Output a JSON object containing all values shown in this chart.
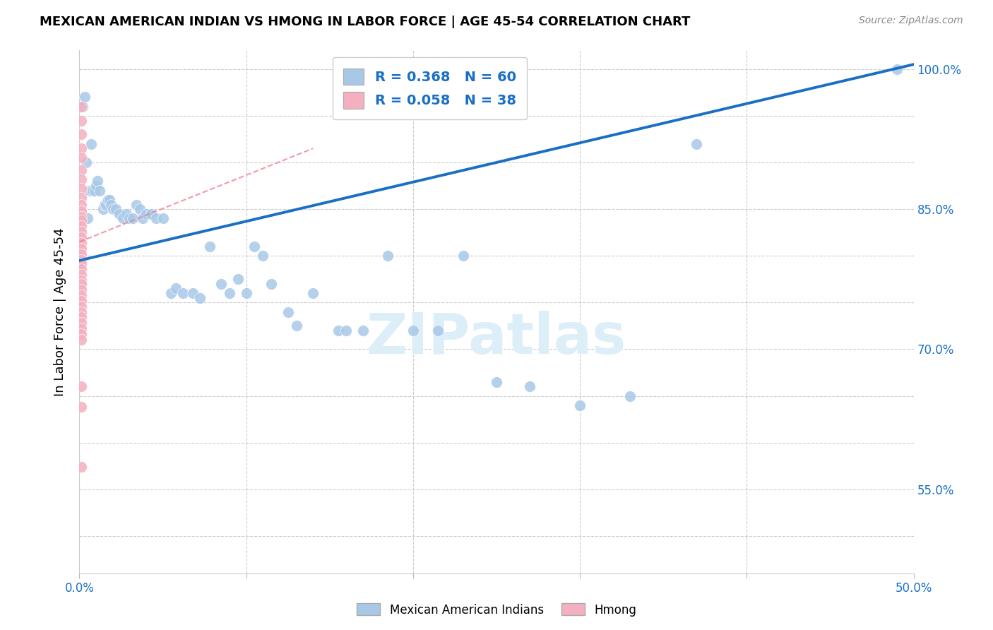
{
  "title": "MEXICAN AMERICAN INDIAN VS HMONG IN LABOR FORCE | AGE 45-54 CORRELATION CHART",
  "source": "Source: ZipAtlas.com",
  "ylabel": "In Labor Force | Age 45-54",
  "xlim": [
    0.0,
    0.5
  ],
  "ylim": [
    0.46,
    1.02
  ],
  "x_ticks": [
    0.0,
    0.1,
    0.2,
    0.3,
    0.4,
    0.5
  ],
  "x_tick_labels": [
    "0.0%",
    "",
    "",
    "",
    "",
    "50.0%"
  ],
  "y_ticks": [
    0.5,
    0.55,
    0.6,
    0.65,
    0.7,
    0.75,
    0.8,
    0.85,
    0.9,
    0.95,
    1.0
  ],
  "y_tick_labels_right": [
    "",
    "55.0%",
    "",
    "",
    "70.0%",
    "",
    "",
    "85.0%",
    "",
    "",
    "100.0%"
  ],
  "blue_color": "#a8c8e8",
  "pink_color": "#f4b0c0",
  "trendline_blue": "#1a6fc4",
  "trendline_pink_color": "#e87c8a",
  "legend_blue_R": "0.368",
  "legend_blue_N": "60",
  "legend_pink_R": "0.058",
  "legend_pink_N": "38",
  "watermark": "ZIPatlas",
  "trendline_blue_x0": 0.0,
  "trendline_blue_y0": 0.795,
  "trendline_blue_x1": 0.5,
  "trendline_blue_y1": 1.005,
  "trendline_pink_x0": 0.0,
  "trendline_pink_y0": 0.815,
  "trendline_pink_x1": 0.14,
  "trendline_pink_y1": 0.915,
  "blue_x": [
    0.002,
    0.003,
    0.004,
    0.005,
    0.006,
    0.007,
    0.008,
    0.009,
    0.01,
    0.011,
    0.012,
    0.014,
    0.015,
    0.016,
    0.017,
    0.018,
    0.019,
    0.02,
    0.022,
    0.024,
    0.026,
    0.028,
    0.03,
    0.032,
    0.034,
    0.036,
    0.038,
    0.04,
    0.043,
    0.046,
    0.05,
    0.055,
    0.058,
    0.062,
    0.068,
    0.072,
    0.078,
    0.085,
    0.09,
    0.095,
    0.1,
    0.105,
    0.11,
    0.115,
    0.125,
    0.13,
    0.14,
    0.155,
    0.16,
    0.17,
    0.185,
    0.2,
    0.215,
    0.23,
    0.25,
    0.27,
    0.3,
    0.33,
    0.37,
    0.49
  ],
  "blue_y": [
    0.96,
    0.97,
    0.9,
    0.84,
    0.87,
    0.92,
    0.87,
    0.87,
    0.875,
    0.88,
    0.87,
    0.85,
    0.855,
    0.855,
    0.86,
    0.86,
    0.855,
    0.85,
    0.85,
    0.845,
    0.84,
    0.845,
    0.84,
    0.84,
    0.855,
    0.85,
    0.84,
    0.845,
    0.845,
    0.84,
    0.84,
    0.76,
    0.765,
    0.76,
    0.76,
    0.755,
    0.81,
    0.77,
    0.76,
    0.775,
    0.76,
    0.81,
    0.8,
    0.77,
    0.74,
    0.725,
    0.76,
    0.72,
    0.72,
    0.72,
    0.8,
    0.72,
    0.72,
    0.8,
    0.665,
    0.66,
    0.64,
    0.65,
    0.92,
    1.0
  ],
  "pink_x": [
    0.001,
    0.001,
    0.001,
    0.001,
    0.001,
    0.001,
    0.001,
    0.001,
    0.001,
    0.001,
    0.001,
    0.001,
    0.001,
    0.001,
    0.001,
    0.001,
    0.001,
    0.001,
    0.001,
    0.001,
    0.001,
    0.001,
    0.001,
    0.001,
    0.001,
    0.001,
    0.001,
    0.001,
    0.001,
    0.001,
    0.001,
    0.001,
    0.001,
    0.001,
    0.001,
    0.001,
    0.001,
    0.001
  ],
  "pink_y": [
    0.96,
    0.945,
    0.93,
    0.915,
    0.905,
    0.892,
    0.882,
    0.872,
    0.862,
    0.855,
    0.848,
    0.842,
    0.838,
    0.832,
    0.826,
    0.82,
    0.814,
    0.808,
    0.802,
    0.796,
    0.792,
    0.786,
    0.78,
    0.774,
    0.77,
    0.764,
    0.758,
    0.752,
    0.746,
    0.74,
    0.734,
    0.728,
    0.722,
    0.716,
    0.71,
    0.66,
    0.638,
    0.574
  ]
}
